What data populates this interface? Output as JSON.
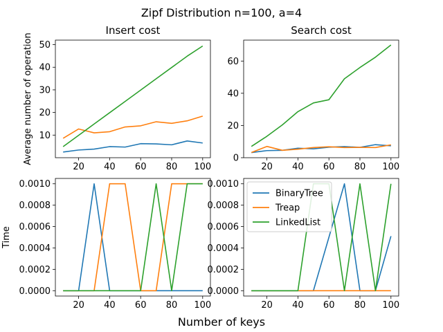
{
  "figure": {
    "suptitle": "Zipf Distribution n=100, a=4",
    "supxlabel": "Number of keys"
  },
  "colors": {
    "BinaryTree": "#1f77b4",
    "Treap": "#ff7f0e",
    "LinkedList": "#2ca02c"
  },
  "legend": {
    "entries": [
      "BinaryTree",
      "Treap",
      "LinkedList"
    ],
    "placement": "upper-left of bottom-right panel"
  },
  "chart_data": [
    {
      "type": "line",
      "panel": "top-left",
      "title": "Insert cost",
      "xlabel": "",
      "ylabel": "Average number of operation",
      "xlim": [
        5,
        105
      ],
      "ylim": [
        0,
        52
      ],
      "xticks": [
        20,
        40,
        60,
        80,
        100
      ],
      "yticks": [
        10,
        20,
        30,
        40,
        50
      ],
      "ytick_labels": [
        "10",
        "20",
        "30",
        "40",
        "50"
      ],
      "x": [
        10,
        20,
        30,
        40,
        50,
        60,
        70,
        80,
        90,
        100
      ],
      "series": [
        {
          "name": "BinaryTree",
          "values": [
            2.5,
            3.4,
            3.8,
            4.9,
            4.7,
            6.2,
            6.1,
            5.7,
            7.4,
            6.5
          ]
        },
        {
          "name": "Treap",
          "values": [
            8.6,
            12.7,
            11.0,
            11.5,
            13.6,
            14.1,
            15.9,
            15.2,
            16.3,
            18.4
          ]
        },
        {
          "name": "LinkedList",
          "values": [
            4.9,
            9.9,
            14.9,
            19.9,
            24.9,
            29.9,
            34.9,
            39.9,
            44.9,
            49.4
          ]
        }
      ]
    },
    {
      "type": "line",
      "panel": "top-right",
      "title": "Search cost",
      "xlabel": "",
      "ylabel": "",
      "xlim": [
        5,
        105
      ],
      "ylim": [
        0,
        73
      ],
      "xticks": [
        20,
        40,
        60,
        80,
        100
      ],
      "yticks": [
        0,
        20,
        40,
        60
      ],
      "ytick_labels": [
        "0",
        "20",
        "40",
        "60"
      ],
      "x": [
        10,
        20,
        30,
        40,
        50,
        60,
        70,
        80,
        90,
        100
      ],
      "series": [
        {
          "name": "BinaryTree",
          "values": [
            3.2,
            4.4,
            4.6,
            5.9,
            5.5,
            6.5,
            6.9,
            6.4,
            8.1,
            7.4
          ]
        },
        {
          "name": "Treap",
          "values": [
            3.2,
            7.0,
            4.6,
            5.3,
            6.3,
            6.8,
            6.3,
            6.4,
            6.3,
            8.0
          ]
        },
        {
          "name": "LinkedList",
          "values": [
            7.0,
            13.3,
            20.4,
            28.6,
            34.0,
            36.0,
            49.0,
            56.0,
            62.4,
            70.0
          ]
        }
      ]
    },
    {
      "type": "line",
      "panel": "bottom-left",
      "title": "",
      "xlabel": "",
      "ylabel": "Time",
      "xlim": [
        5,
        105
      ],
      "ylim": [
        -5e-05,
        0.00105
      ],
      "xticks": [
        20,
        40,
        60,
        80,
        100
      ],
      "yticks": [
        0,
        0.0002,
        0.0004,
        0.0006,
        0.0008,
        0.001
      ],
      "ytick_labels": [
        "0.0000",
        "0.0002",
        "0.0004",
        "0.0006",
        "0.0008",
        "0.0010"
      ],
      "x": [
        10,
        20,
        30,
        40,
        50,
        60,
        70,
        80,
        90,
        100
      ],
      "series": [
        {
          "name": "BinaryTree",
          "values": [
            0,
            0,
            0.001,
            0,
            0,
            0,
            0,
            0,
            0,
            0
          ]
        },
        {
          "name": "Treap",
          "values": [
            0,
            0,
            0,
            0.001,
            0.001,
            0,
            0,
            0.001,
            0.001,
            0.001
          ]
        },
        {
          "name": "LinkedList",
          "values": [
            0,
            0,
            0,
            0,
            0,
            0,
            0.001,
            0,
            0.001,
            0.001
          ]
        }
      ]
    },
    {
      "type": "line",
      "panel": "bottom-right",
      "title": "",
      "xlabel": "",
      "ylabel": "",
      "xlim": [
        5,
        105
      ],
      "ylim": [
        -5e-05,
        0.00105
      ],
      "xticks": [
        20,
        40,
        60,
        80,
        100
      ],
      "yticks": [
        0,
        0.0002,
        0.0004,
        0.0006,
        0.0008,
        0.001
      ],
      "ytick_labels": [
        "0.0000",
        "0.0002",
        "0.0004",
        "0.0006",
        "0.0008",
        "0.0010"
      ],
      "x": [
        10,
        20,
        30,
        40,
        50,
        60,
        70,
        80,
        90,
        100
      ],
      "series": [
        {
          "name": "BinaryTree",
          "values": [
            0,
            0,
            0,
            0,
            0,
            0.0005,
            0.001,
            0,
            0,
            0.00051
          ]
        },
        {
          "name": "Treap",
          "values": [
            0,
            0,
            0,
            0,
            0,
            0,
            0,
            0,
            0,
            0
          ]
        },
        {
          "name": "LinkedList",
          "values": [
            0,
            0,
            0,
            0,
            0.001,
            0.001,
            0,
            0.001,
            0,
            0.001
          ]
        }
      ]
    }
  ]
}
